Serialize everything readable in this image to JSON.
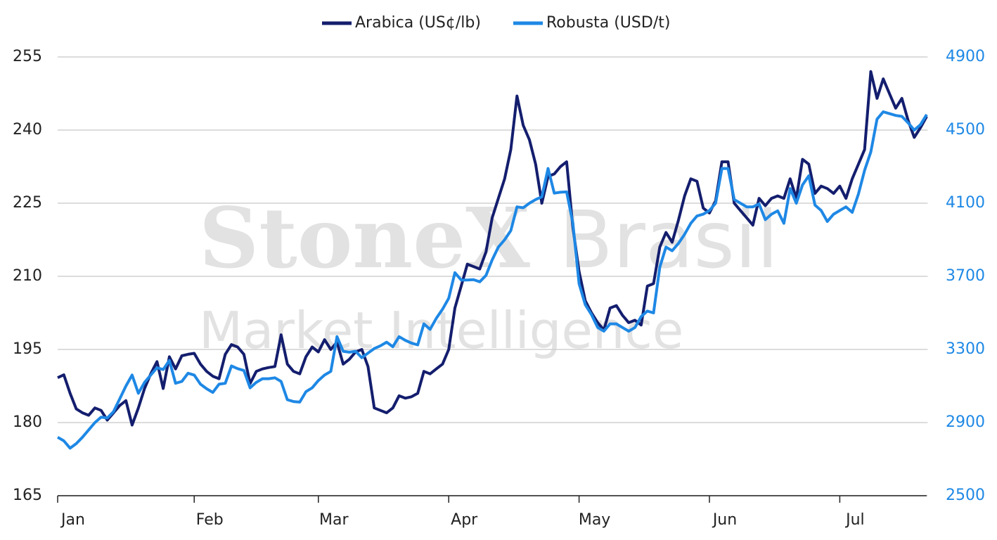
{
  "watermark": {
    "brand": "StoneX",
    "region": "Brasil",
    "tagline": "Market Intelligence"
  },
  "chart_data": {
    "type": "line",
    "categories": [
      "Jan",
      null,
      null,
      null,
      null,
      null,
      null,
      null,
      null,
      null,
      null,
      null,
      null,
      null,
      null,
      null,
      null,
      null,
      null,
      null,
      null,
      null,
      "Feb",
      null,
      null,
      null,
      null,
      null,
      null,
      null,
      null,
      null,
      null,
      null,
      null,
      null,
      null,
      null,
      null,
      null,
      null,
      null,
      "Mar",
      null,
      null,
      null,
      null,
      null,
      null,
      null,
      null,
      null,
      null,
      null,
      null,
      null,
      null,
      null,
      null,
      null,
      null,
      null,
      null,
      "Apr",
      null,
      null,
      null,
      null,
      null,
      null,
      null,
      null,
      null,
      null,
      null,
      null,
      null,
      null,
      null,
      null,
      null,
      null,
      null,
      null,
      "May",
      null,
      null,
      null,
      null,
      null,
      null,
      null,
      null,
      null,
      null,
      null,
      null,
      null,
      null,
      null,
      null,
      null,
      null,
      null,
      null,
      "Jun",
      null,
      null,
      null,
      null,
      null,
      null,
      null,
      null,
      null,
      null,
      null,
      null,
      null,
      null,
      null,
      null,
      null,
      null,
      null,
      null,
      "Jul",
      null,
      null,
      null,
      null,
      null,
      null,
      null,
      null,
      null,
      null,
      null,
      null,
      null,
      null
    ],
    "series": [
      {
        "name": "Arabica (US¢/lb)",
        "color": "#141e6e",
        "values": [
          189.2,
          189.8,
          186,
          182.8,
          182,
          181.5,
          183,
          182.5,
          180.5,
          182,
          183.5,
          184.5,
          179.5,
          183,
          187,
          190,
          192.5,
          187,
          193.5,
          191,
          193.7,
          194,
          194.2,
          192,
          190.5,
          189.5,
          189,
          194,
          196,
          195.5,
          194,
          188,
          190.5,
          191,
          191.3,
          191.5,
          198,
          192,
          190.5,
          190,
          193.5,
          195.5,
          194.5,
          197,
          195,
          196.5,
          192,
          193,
          194.5,
          195,
          191.5,
          183,
          182.5,
          182,
          183,
          185.5,
          185,
          185.3,
          186,
          190.5,
          190,
          191,
          192,
          195,
          203.5,
          208,
          212.5,
          212,
          211.5,
          215,
          222,
          226,
          230,
          236,
          247,
          241,
          238,
          233,
          225,
          230.5,
          231,
          232.5,
          233.5,
          220,
          211,
          205,
          202.5,
          200.5,
          199,
          203.5,
          204,
          202,
          200.5,
          201,
          200,
          208,
          208.5,
          216,
          219,
          217,
          221.5,
          226.5,
          230,
          229.5,
          224,
          223,
          225.5,
          233.5,
          233.5,
          225,
          223.5,
          222,
          220.5,
          226,
          224.5,
          226,
          226.5,
          226,
          230,
          226,
          234,
          233,
          227,
          228.5,
          228,
          227,
          228.5,
          226,
          230,
          233,
          236,
          252,
          246.5,
          250.5,
          247.5,
          244.5,
          246.5,
          242,
          238.5,
          240.5,
          242.8
        ]
      },
      {
        "name": "Robusta (USD/t)",
        "color": "#1e88e5",
        "axis": "y2",
        "values": [
          2820,
          2800,
          2760,
          2785,
          2820,
          2860,
          2900,
          2930,
          2925,
          2960,
          3030,
          3100,
          3160,
          3060,
          3120,
          3160,
          3200,
          3190,
          3240,
          3115,
          3125,
          3170,
          3160,
          3110,
          3085,
          3065,
          3110,
          3115,
          3210,
          3195,
          3185,
          3090,
          3120,
          3140,
          3140,
          3145,
          3125,
          3025,
          3015,
          3012,
          3069,
          3090,
          3130,
          3160,
          3180,
          3370,
          3290,
          3285,
          3290,
          3255,
          3280,
          3305,
          3320,
          3340,
          3315,
          3370,
          3350,
          3335,
          3325,
          3440,
          3410,
          3470,
          3520,
          3580,
          3720,
          3680,
          3680,
          3682,
          3670,
          3705,
          3790,
          3860,
          3900,
          3950,
          4080,
          4075,
          4100,
          4120,
          4135,
          4290,
          4155,
          4160,
          4162,
          3990,
          3660,
          3545,
          3490,
          3420,
          3400,
          3440,
          3440,
          3420,
          3400,
          3420,
          3480,
          3510,
          3500,
          3750,
          3860,
          3840,
          3880,
          3930,
          3990,
          4030,
          4040,
          4060,
          4100,
          4290,
          4290,
          4120,
          4100,
          4080,
          4080,
          4096,
          4010,
          4040,
          4058,
          3990,
          4180,
          4100,
          4200,
          4250,
          4090,
          4060,
          4000,
          4040,
          4060,
          4080,
          4050,
          4150,
          4280,
          4380,
          4560,
          4600,
          4590,
          4580,
          4575,
          4540,
          4500,
          4530,
          4585
        ]
      }
    ],
    "ylim": [
      165,
      255
    ],
    "yticks": [
      165,
      180,
      195,
      210,
      225,
      240,
      255
    ],
    "y2lim": [
      2500,
      4900
    ],
    "y2ticks": [
      2500,
      2900,
      3300,
      3700,
      4100,
      4500,
      4900
    ],
    "y2color": "#1e88e5",
    "grid": true,
    "legend": "top"
  }
}
